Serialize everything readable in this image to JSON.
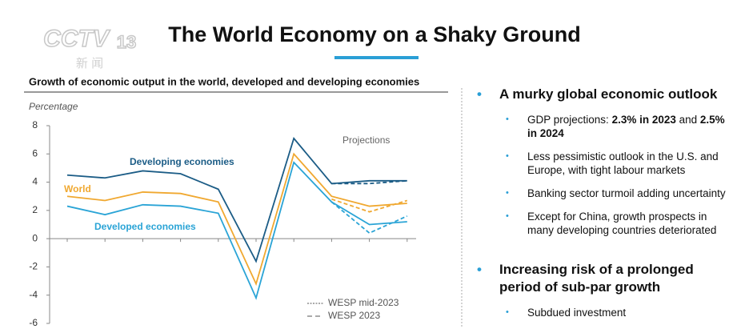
{
  "header": {
    "title": "The World Economy on a Shaky Ground",
    "watermark": [
      "CCTV",
      "13",
      "新 闻"
    ]
  },
  "chart_data": {
    "type": "line",
    "title": "Growth of economic output in the world, developed and developing economies",
    "ylabel": "Percentage",
    "categories": [
      null,
      null,
      null,
      null,
      null,
      null,
      null,
      null,
      null,
      null
    ],
    "ylim": [
      -6,
      8
    ],
    "yticks": [
      -6,
      -4,
      -2,
      0,
      2,
      4,
      6,
      8
    ],
    "annotation": "Projections",
    "legend_labels": [
      "WESP mid-2023",
      "WESP 2023"
    ],
    "series": [
      {
        "name": "Developing economies",
        "color": "#1b5c86",
        "values": [
          4.5,
          4.3,
          4.8,
          4.6,
          3.5,
          -1.6,
          7.1,
          3.9,
          4.1,
          4.1
        ],
        "projection_values": [
          null,
          null,
          null,
          null,
          null,
          null,
          null,
          3.9,
          3.9,
          4.1
        ]
      },
      {
        "name": "World",
        "color": "#f0a830",
        "values": [
          3.0,
          2.7,
          3.3,
          3.2,
          2.6,
          -3.2,
          6.0,
          3.0,
          2.3,
          2.5
        ],
        "projection_values": [
          null,
          null,
          null,
          null,
          null,
          null,
          null,
          2.8,
          1.9,
          2.7
        ]
      },
      {
        "name": "Developed economies",
        "color": "#2aa4d6",
        "values": [
          2.3,
          1.7,
          2.4,
          2.3,
          1.8,
          -4.2,
          5.4,
          2.6,
          1.0,
          1.2
        ],
        "projection_values": [
          null,
          null,
          null,
          null,
          null,
          null,
          null,
          2.6,
          0.4,
          1.6
        ]
      }
    ]
  },
  "bullets": [
    {
      "text": "A murky global economic outlook",
      "items": [
        [
          "GDP projections: ",
          "2.3% in 2023",
          " and ",
          "2.5% in 2024"
        ],
        [
          "Less pessimistic outlook in the U.S. and Europe, with tight labour markets"
        ],
        [
          "Banking sector turmoil adding uncertainty"
        ],
        [
          "Except for China, growth prospects in many developing countries deteriorated"
        ]
      ]
    },
    {
      "text": "Increasing risk of a prolonged period of sub-par growth",
      "items": [
        [
          "Subdued investment"
        ]
      ]
    }
  ]
}
